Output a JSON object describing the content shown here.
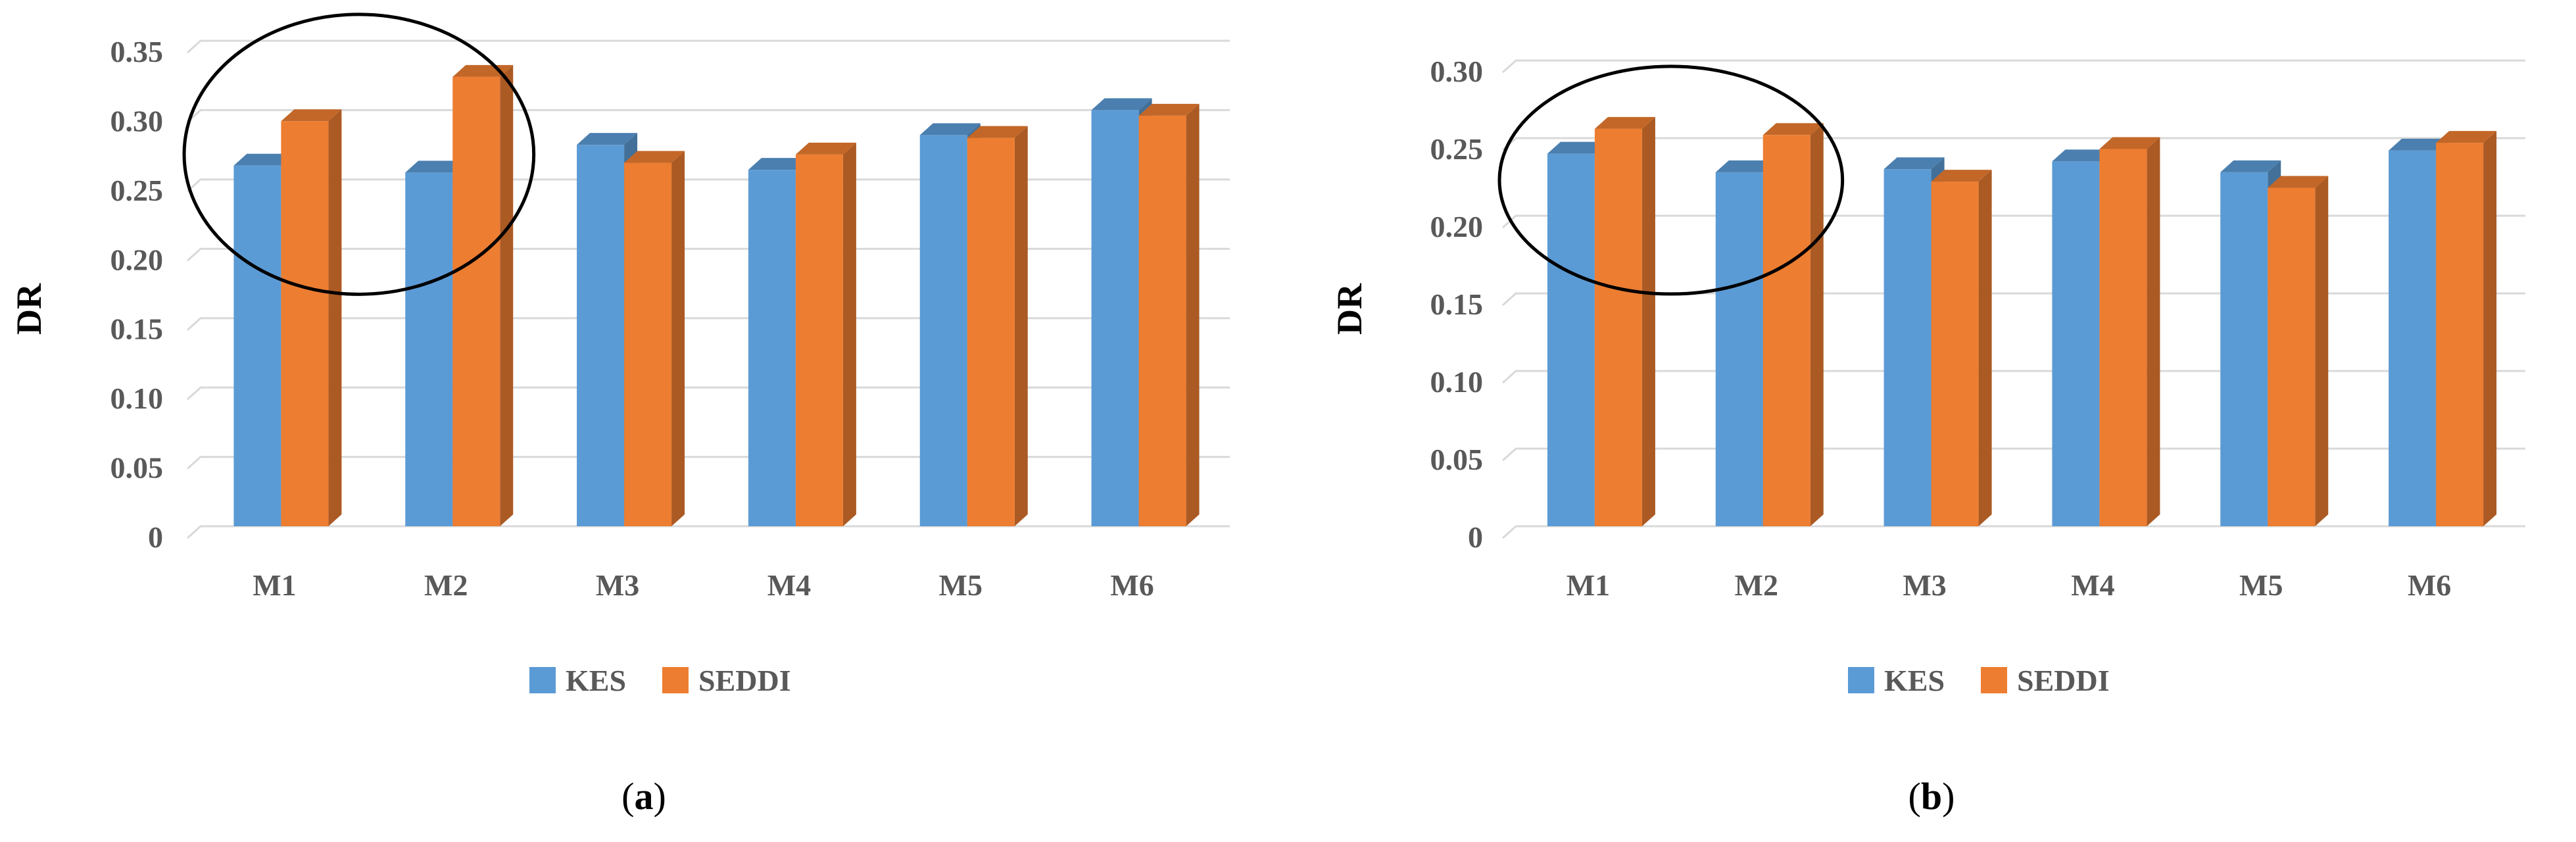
{
  "colors": {
    "kes": "#5b9bd5",
    "seddi": "#ed7d31",
    "grid": "#d9d9d9",
    "text": "#595959"
  },
  "chart_data": [
    {
      "type": "bar",
      "panel_label": "a",
      "caption": "(a)",
      "ylabel": "DR",
      "xlabel": "",
      "categories": [
        "M1",
        "M2",
        "M3",
        "M4",
        "M5",
        "M6"
      ],
      "series": [
        {
          "name": "KES",
          "values": [
            0.26,
            0.255,
            0.275,
            0.257,
            0.282,
            0.3
          ]
        },
        {
          "name": "SEDDI",
          "values": [
            0.292,
            0.324,
            0.262,
            0.268,
            0.28,
            0.296
          ]
        }
      ],
      "ylim": [
        0,
        0.35
      ],
      "yticks": [
        "0",
        "0.05",
        "0.10",
        "0.15",
        "0.20",
        "0.25",
        "0.30",
        "0.35"
      ],
      "grid": true,
      "legend_position": "bottom",
      "highlight": {
        "shape": "ellipse",
        "categories": [
          "M1",
          "M2"
        ]
      }
    },
    {
      "type": "bar",
      "panel_label": "b",
      "caption": "(b)",
      "ylabel": "DR",
      "xlabel": "",
      "categories": [
        "M1",
        "M2",
        "M3",
        "M4",
        "M5",
        "M6"
      ],
      "series": [
        {
          "name": "KES",
          "values": [
            0.24,
            0.228,
            0.23,
            0.235,
            0.228,
            0.242
          ]
        },
        {
          "name": "SEDDI",
          "values": [
            0.256,
            0.252,
            0.222,
            0.243,
            0.218,
            0.247
          ]
        }
      ],
      "ylim": [
        0,
        0.3
      ],
      "yticks": [
        "0",
        "0.05",
        "0.10",
        "0.15",
        "0.20",
        "0.25",
        "0.30"
      ],
      "grid": true,
      "legend_position": "bottom",
      "highlight": {
        "shape": "ellipse",
        "categories": [
          "M1",
          "M2"
        ]
      }
    }
  ]
}
